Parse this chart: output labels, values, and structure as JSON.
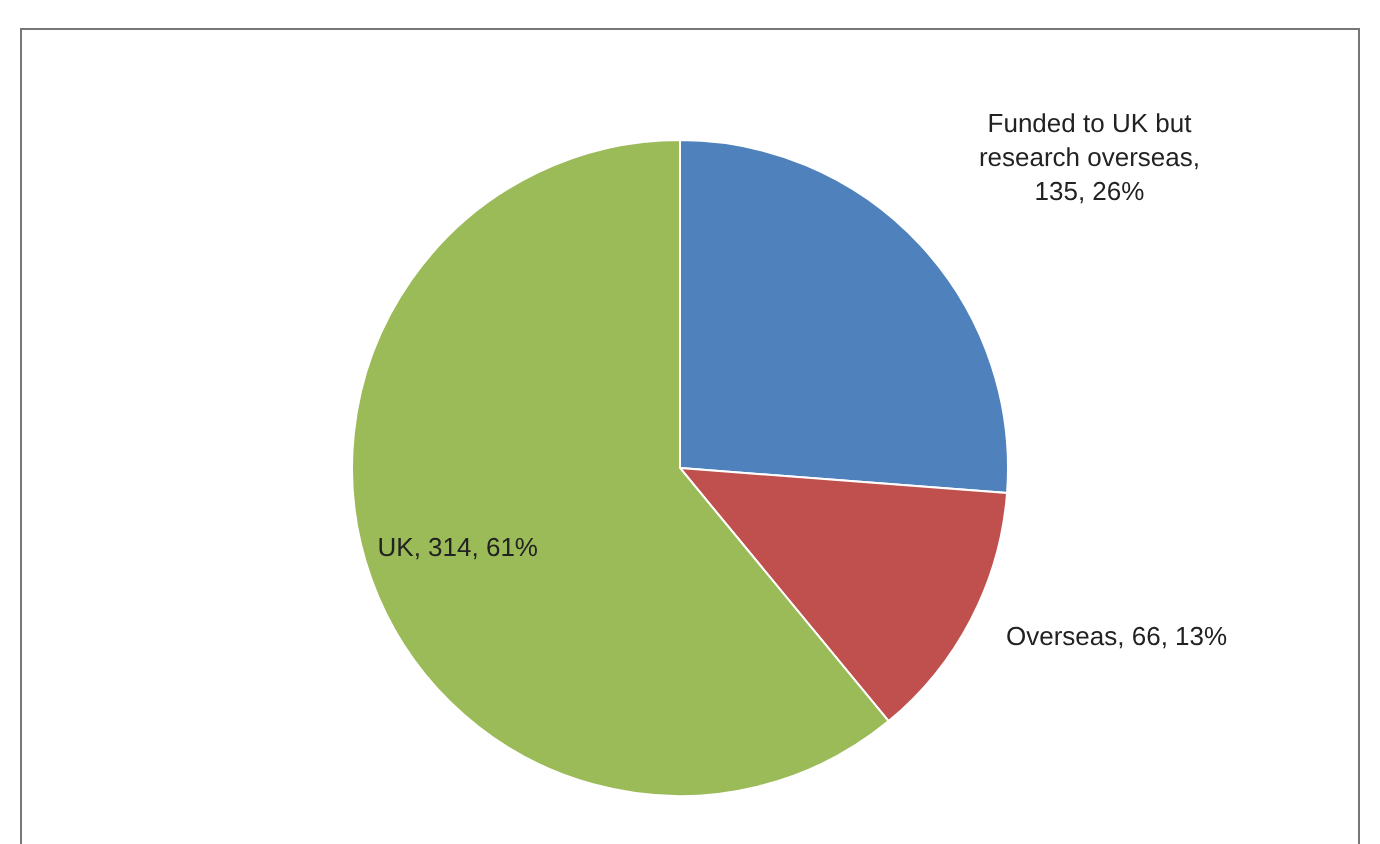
{
  "chart_data": {
    "type": "pie",
    "categories": [
      "Funded to UK but research overseas",
      "Overseas",
      "UK"
    ],
    "values": [
      135,
      66,
      314
    ],
    "value_labels": [
      ", 135, 26%",
      ", 66, 13%",
      ", 314, 61%"
    ],
    "colors": [
      "#4f81bd",
      "#c0504d",
      "#9bbb59"
    ],
    "legend": false
  }
}
